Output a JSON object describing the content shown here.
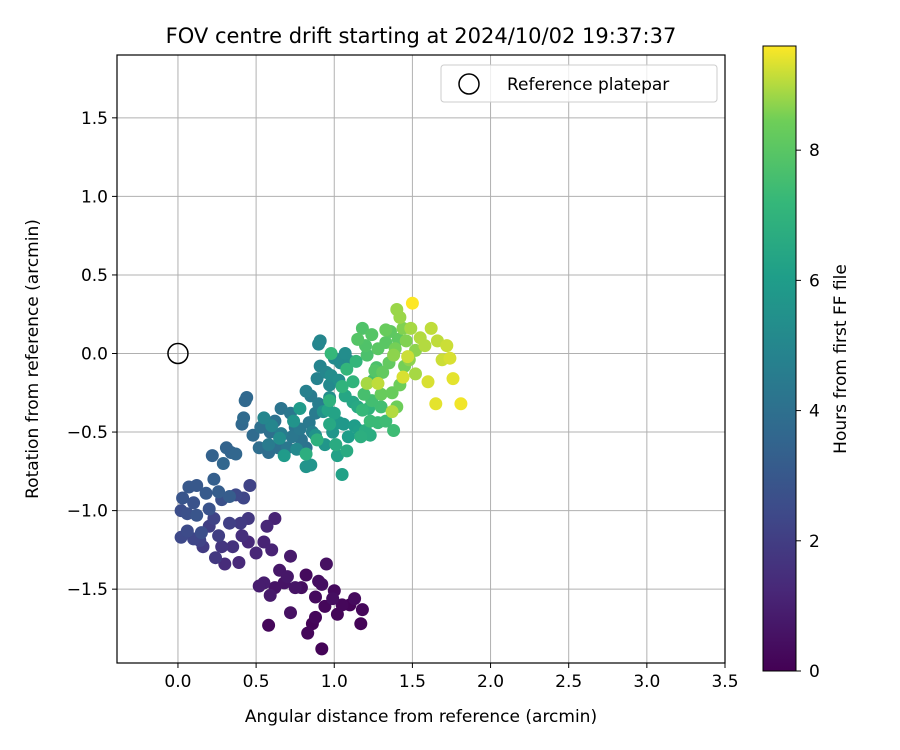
{
  "chart_data": {
    "type": "scatter",
    "title": "FOV centre drift starting at 2024/10/02 19:37:37",
    "xlabel": "Angular distance from reference (arcmin)",
    "ylabel": "Rotation from reference (arcmin)",
    "xlim": [
      -0.39,
      3.5
    ],
    "ylim": [
      -1.97,
      1.9
    ],
    "x_ticks": [
      0.0,
      0.5,
      1.0,
      1.5,
      2.0,
      2.5,
      3.0,
      3.5
    ],
    "y_ticks": [
      -1.5,
      -1.0,
      -0.5,
      0.0,
      0.5,
      1.0,
      1.5
    ],
    "grid": true,
    "legend": {
      "placement": "top-right",
      "entries": [
        "Reference platepar"
      ]
    },
    "reference_point": {
      "x": 0.0,
      "y": 0.0,
      "label": "Reference platepar"
    },
    "colorbar": {
      "label": "Hours from first FF file",
      "colormap": "viridis",
      "range": [
        0,
        9.6
      ],
      "ticks": [
        0,
        2,
        4,
        6,
        8
      ]
    },
    "points": [
      [
        0.58,
        -1.73,
        0.2
      ],
      [
        0.82,
        -1.41,
        0.3
      ],
      [
        0.83,
        -1.78,
        0.2
      ],
      [
        0.92,
        -1.88,
        0.1
      ],
      [
        0.99,
        -1.56,
        0.4
      ],
      [
        1.13,
        -1.56,
        0.3
      ],
      [
        1.17,
        -1.72,
        0.1
      ],
      [
        1.18,
        -1.63,
        0.2
      ],
      [
        0.9,
        -1.45,
        0.4
      ],
      [
        0.95,
        -1.34,
        0.5
      ],
      [
        0.72,
        -1.65,
        0.5
      ],
      [
        0.62,
        -1.49,
        0.6
      ],
      [
        0.65,
        -1.38,
        0.7
      ],
      [
        0.72,
        -1.29,
        0.8
      ],
      [
        0.55,
        -1.46,
        0.9
      ],
      [
        0.75,
        -1.49,
        0.6
      ],
      [
        0.79,
        -1.49,
        0.4
      ],
      [
        0.88,
        -1.55,
        0.3
      ],
      [
        0.88,
        -1.68,
        0.2
      ],
      [
        1.05,
        -1.6,
        0.2
      ],
      [
        1.1,
        -1.6,
        0.1
      ],
      [
        1.0,
        -1.51,
        0.3
      ],
      [
        0.59,
        -1.54,
        0.8
      ],
      [
        0.7,
        -1.42,
        0.7
      ],
      [
        0.52,
        -1.48,
        0.9
      ],
      [
        0.86,
        -1.72,
        0.1
      ],
      [
        0.94,
        -1.61,
        0.2
      ],
      [
        1.02,
        -1.66,
        0.15
      ],
      [
        0.68,
        -1.46,
        0.6
      ],
      [
        0.92,
        -1.47,
        0.45
      ],
      [
        0.62,
        -1.05,
        1.1
      ],
      [
        0.55,
        -1.2,
        1.1
      ],
      [
        0.5,
        -1.27,
        1.2
      ],
      [
        0.45,
        -1.2,
        1.3
      ],
      [
        0.6,
        -1.25,
        1.1
      ],
      [
        0.57,
        -1.1,
        1.2
      ],
      [
        0.39,
        -1.33,
        1.3
      ],
      [
        0.3,
        -1.34,
        1.4
      ],
      [
        0.41,
        -1.16,
        1.5
      ],
      [
        0.35,
        -1.23,
        1.6
      ],
      [
        0.28,
        -1.23,
        1.7
      ],
      [
        0.24,
        -1.3,
        1.8
      ],
      [
        0.16,
        -1.23,
        1.9
      ],
      [
        0.2,
        -1.1,
        2.0
      ],
      [
        0.26,
        -1.16,
        2.0
      ],
      [
        0.45,
        -1.05,
        1.8
      ],
      [
        0.4,
        -1.08,
        1.9
      ],
      [
        0.33,
        -1.08,
        2.1
      ],
      [
        0.23,
        -1.05,
        2.2
      ],
      [
        0.1,
        -1.18,
        2.3
      ],
      [
        0.02,
        -1.17,
        2.4
      ],
      [
        0.06,
        -1.13,
        2.5
      ],
      [
        0.15,
        -1.14,
        2.6
      ],
      [
        0.06,
        -1.02,
        2.7
      ],
      [
        0.1,
        -0.95,
        2.8
      ],
      [
        0.03,
        -0.92,
        2.9
      ],
      [
        0.07,
        -0.85,
        3.0
      ],
      [
        0.12,
        -0.84,
        3.0
      ],
      [
        0.18,
        -0.89,
        3.1
      ],
      [
        0.26,
        -0.88,
        3.2
      ],
      [
        0.23,
        -0.8,
        3.3
      ],
      [
        0.33,
        -0.91,
        3.2
      ],
      [
        0.2,
        -0.99,
        2.8
      ],
      [
        0.02,
        -1.0,
        2.6
      ],
      [
        0.12,
        -1.03,
        2.9
      ],
      [
        0.37,
        -0.9,
        2.4
      ],
      [
        0.28,
        -0.93,
        2.7
      ],
      [
        0.46,
        -0.84,
        2.2
      ],
      [
        0.42,
        -0.92,
        2.3
      ],
      [
        0.14,
        -1.19,
        2.2
      ],
      [
        0.22,
        -0.65,
        3.4
      ],
      [
        0.31,
        -0.6,
        3.5
      ],
      [
        0.34,
        -0.63,
        3.5
      ],
      [
        0.29,
        -0.7,
        3.6
      ],
      [
        0.37,
        -0.64,
        3.6
      ],
      [
        0.41,
        -0.45,
        3.7
      ],
      [
        0.44,
        -0.28,
        3.7
      ],
      [
        0.43,
        -0.3,
        3.7
      ],
      [
        0.42,
        -0.41,
        3.8
      ],
      [
        0.48,
        -0.52,
        3.8
      ],
      [
        0.52,
        -0.6,
        3.9
      ],
      [
        0.58,
        -0.63,
        3.9
      ],
      [
        0.64,
        -0.6,
        4.0
      ],
      [
        0.53,
        -0.47,
        4.0
      ],
      [
        0.59,
        -0.5,
        4.0
      ],
      [
        0.62,
        -0.43,
        4.1
      ],
      [
        0.66,
        -0.35,
        4.2
      ],
      [
        0.72,
        -0.38,
        4.3
      ],
      [
        0.75,
        -0.47,
        4.2
      ],
      [
        0.79,
        -0.55,
        4.2
      ],
      [
        0.82,
        -0.6,
        4.1
      ],
      [
        0.7,
        -0.6,
        4.3
      ],
      [
        0.73,
        -0.53,
        4.3
      ],
      [
        0.78,
        -0.48,
        4.4
      ],
      [
        0.84,
        -0.44,
        4.4
      ],
      [
        0.88,
        -0.38,
        4.5
      ],
      [
        0.9,
        -0.32,
        4.6
      ],
      [
        0.85,
        -0.27,
        4.5
      ],
      [
        0.82,
        -0.24,
        4.7
      ],
      [
        0.89,
        -0.16,
        4.8
      ],
      [
        0.91,
        -0.08,
        4.9
      ],
      [
        0.9,
        0.06,
        4.9
      ],
      [
        0.91,
        0.08,
        5.0
      ],
      [
        0.95,
        -0.12,
        5.0
      ],
      [
        0.97,
        -0.2,
        5.1
      ],
      [
        1.0,
        -0.03,
        5.1
      ],
      [
        1.04,
        -0.06,
        5.2
      ],
      [
        1.07,
        0.0,
        5.3
      ],
      [
        1.1,
        -0.05,
        5.2
      ],
      [
        0.98,
        -0.14,
        5.3
      ],
      [
        1.03,
        -0.17,
        5.4
      ],
      [
        0.97,
        -0.28,
        5.4
      ],
      [
        0.93,
        -0.37,
        5.5
      ],
      [
        0.88,
        -0.52,
        5.5
      ],
      [
        0.82,
        -0.72,
        5.6
      ],
      [
        0.85,
        -0.71,
        5.6
      ],
      [
        0.94,
        -0.58,
        5.7
      ],
      [
        0.99,
        -0.5,
        5.7
      ],
      [
        1.03,
        -0.44,
        5.8
      ],
      [
        1.06,
        -0.45,
        5.8
      ],
      [
        0.78,
        -0.35,
        5.9
      ],
      [
        0.74,
        -0.43,
        5.6
      ],
      [
        0.65,
        -0.54,
        5.3
      ],
      [
        0.6,
        -0.46,
        5.0
      ],
      [
        0.55,
        -0.41,
        5.0
      ],
      [
        0.58,
        -0.58,
        4.5
      ],
      [
        0.68,
        -0.65,
        5.9
      ],
      [
        0.76,
        -0.61,
        5.1
      ],
      [
        0.66,
        -0.51,
        4.6
      ],
      [
        0.86,
        -0.5,
        4.7
      ],
      [
        1.09,
        -0.53,
        6.0
      ],
      [
        1.13,
        -0.46,
        6.0
      ],
      [
        1.16,
        -0.49,
        6.1
      ],
      [
        1.05,
        -0.77,
        6.2
      ],
      [
        1.02,
        -0.65,
        6.2
      ],
      [
        0.96,
        -0.36,
        6.3
      ],
      [
        1.0,
        -0.38,
        6.3
      ],
      [
        1.07,
        -0.27,
        6.4
      ],
      [
        1.12,
        -0.31,
        6.4
      ],
      [
        1.15,
        -0.34,
        6.5
      ],
      [
        0.97,
        -0.45,
        6.5
      ],
      [
        1.01,
        -0.58,
        6.6
      ],
      [
        1.08,
        -0.62,
        6.6
      ],
      [
        1.2,
        -0.49,
        6.7
      ],
      [
        1.23,
        -0.52,
        6.7
      ],
      [
        1.17,
        -0.53,
        6.8
      ],
      [
        0.82,
        -0.64,
        6.8
      ],
      [
        0.89,
        -0.55,
        6.9
      ],
      [
        0.97,
        -0.3,
        6.9
      ],
      [
        1.05,
        -0.21,
        7.0
      ],
      [
        1.12,
        -0.18,
        7.0
      ],
      [
        1.08,
        -0.1,
        7.1
      ],
      [
        1.14,
        -0.05,
        7.1
      ],
      [
        0.98,
        0.0,
        7.2
      ],
      [
        1.18,
        -0.36,
        7.2
      ],
      [
        1.23,
        -0.43,
        7.3
      ],
      [
        1.28,
        -0.44,
        7.3
      ],
      [
        1.33,
        -0.43,
        7.4
      ],
      [
        1.38,
        -0.49,
        7.4
      ],
      [
        1.3,
        -0.34,
        7.5
      ],
      [
        1.24,
        -0.3,
        7.5
      ],
      [
        1.19,
        -0.26,
        7.6
      ],
      [
        1.25,
        -0.17,
        7.6
      ],
      [
        1.27,
        -0.09,
        7.7
      ],
      [
        1.21,
        -0.01,
        7.7
      ],
      [
        1.18,
        0.16,
        7.8
      ],
      [
        1.2,
        0.05,
        7.8
      ],
      [
        1.15,
        0.09,
        7.9
      ],
      [
        1.24,
        0.12,
        7.9
      ],
      [
        1.28,
        0.03,
        8.0
      ],
      [
        1.33,
        0.07,
        8.0
      ],
      [
        1.36,
        0.14,
        8.1
      ],
      [
        1.41,
        0.09,
        8.1
      ],
      [
        1.35,
        -0.06,
        8.2
      ],
      [
        1.31,
        -0.12,
        8.2
      ],
      [
        1.3,
        -0.26,
        8.3
      ],
      [
        1.37,
        -0.25,
        8.3
      ],
      [
        1.4,
        -0.34,
        8.4
      ],
      [
        1.42,
        -0.2,
        8.4
      ],
      [
        1.45,
        -0.08,
        8.5
      ],
      [
        1.39,
        0.03,
        8.5
      ],
      [
        1.44,
        0.16,
        8.6
      ],
      [
        1.46,
        0.08,
        8.6
      ],
      [
        1.52,
        0.02,
        8.7
      ],
      [
        1.48,
        -0.04,
        8.7
      ],
      [
        1.4,
        0.28,
        8.8
      ],
      [
        1.42,
        0.23,
        8.8
      ],
      [
        1.49,
        0.16,
        8.9
      ],
      [
        1.52,
        -0.13,
        8.9
      ],
      [
        1.55,
        0.1,
        9.0
      ],
      [
        1.58,
        0.05,
        9.0
      ],
      [
        1.62,
        0.16,
        9.1
      ],
      [
        1.66,
        0.08,
        9.1
      ],
      [
        1.72,
        0.05,
        9.2
      ],
      [
        1.69,
        -0.04,
        9.2
      ],
      [
        1.74,
        -0.03,
        9.3
      ],
      [
        1.6,
        -0.18,
        9.3
      ],
      [
        1.65,
        -0.32,
        9.4
      ],
      [
        1.76,
        -0.16,
        9.4
      ],
      [
        1.81,
        -0.32,
        9.5
      ],
      [
        1.5,
        0.32,
        9.6
      ],
      [
        1.37,
        -0.37,
        9.0
      ],
      [
        1.44,
        -0.15,
        9.3
      ],
      [
        1.28,
        -0.19,
        9.1
      ],
      [
        1.21,
        -0.19,
        8.9
      ],
      [
        1.33,
        0.15,
        8.3
      ],
      [
        1.26,
        -0.11,
        7.9
      ],
      [
        1.38,
        -0.01,
        8.7
      ],
      [
        1.47,
        -0.02,
        9.2
      ],
      [
        1.22,
        -0.35,
        7.0
      ]
    ]
  }
}
